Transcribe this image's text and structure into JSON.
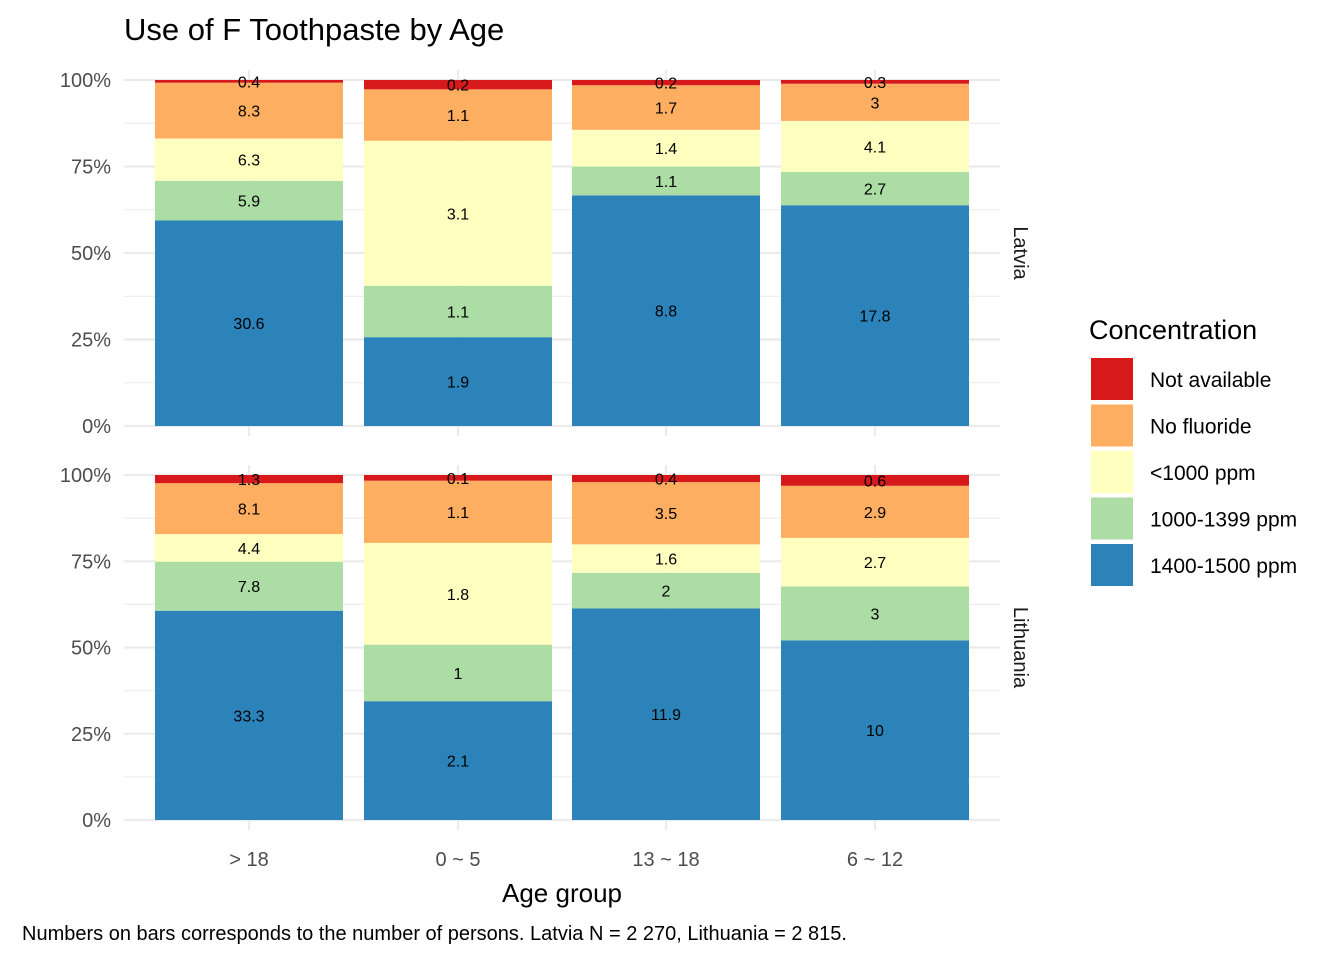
{
  "chart_data": {
    "type": "bar",
    "stacked": "percent",
    "title": "Use of F Toothpaste by Age",
    "xlabel": "Age group",
    "ylabel": "",
    "caption": "Numbers on bars corresponds to the number of persons. Latvia N = 2 270, Lithuania = 2 815.",
    "categories": [
      "> 18",
      "0 ~ 5",
      "13 ~ 18",
      "6 ~ 12"
    ],
    "y_ticks": [
      "0%",
      "25%",
      "50%",
      "75%",
      "100%"
    ],
    "ylim": [
      0,
      100
    ],
    "grid": true,
    "legend": {
      "title": "Concentration",
      "position": "right",
      "items": [
        {
          "label": "Not available",
          "color": "#d7191c"
        },
        {
          "label": "No fluoride",
          "color": "#fdae61"
        },
        {
          "label": "<1000 ppm",
          "color": "#ffffbf"
        },
        {
          "label": "1000-1399 ppm",
          "color": "#abdda4"
        },
        {
          "label": "1400-1500 ppm",
          "color": "#2b83ba"
        }
      ]
    },
    "stack_order": [
      "1400-1500 ppm",
      "1000-1399 ppm",
      "<1000 ppm",
      "No fluoride",
      "Not available"
    ],
    "panels": [
      {
        "name": "Latvia",
        "series": [
          {
            "name": "1400-1500 ppm",
            "values": [
              30.6,
              1.9,
              8.8,
              17.8
            ]
          },
          {
            "name": "1000-1399 ppm",
            "values": [
              5.9,
              1.1,
              1.1,
              2.7
            ]
          },
          {
            "name": "<1000 ppm",
            "values": [
              6.3,
              3.1,
              1.4,
              4.1
            ]
          },
          {
            "name": "No fluoride",
            "values": [
              8.3,
              1.1,
              1.7,
              3
            ]
          },
          {
            "name": "Not available",
            "values": [
              0.4,
              0.2,
              0.2,
              0.3
            ]
          }
        ]
      },
      {
        "name": "Lithuania",
        "series": [
          {
            "name": "1400-1500 ppm",
            "values": [
              33.3,
              2.1,
              11.9,
              10
            ]
          },
          {
            "name": "1000-1399 ppm",
            "values": [
              7.8,
              1,
              2,
              3
            ]
          },
          {
            "name": "<1000 ppm",
            "values": [
              4.4,
              1.8,
              1.6,
              2.7
            ]
          },
          {
            "name": "No fluoride",
            "values": [
              8.1,
              1.1,
              3.5,
              2.9
            ]
          },
          {
            "name": "Not available",
            "values": [
              1.3,
              0.1,
              0.4,
              0.6
            ]
          }
        ]
      }
    ]
  }
}
